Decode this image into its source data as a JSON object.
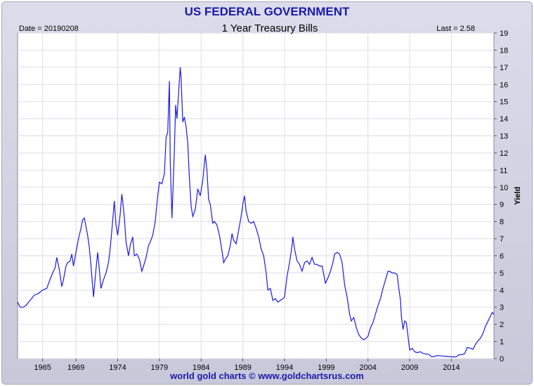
{
  "banner": {
    "title": "US FEDERAL GOVERNMENT"
  },
  "footer": {
    "credit": "world gold charts © www.goldchartsrus.com"
  },
  "colors": {
    "line": "#1a1ae6",
    "banner_text": "#1a1aa8",
    "frame": "#d3d3e3",
    "grid": "#dedee8"
  },
  "chart_data": {
    "type": "line",
    "title": "1 Year Treasury Bills",
    "date_label": "Date = 20190208",
    "last_label": "Last = 2.58",
    "ylabel": "Yield",
    "xlabel": "",
    "xlim": [
      1962,
      2019.1
    ],
    "ylim": [
      0,
      19
    ],
    "x_ticks": [
      1965,
      1969,
      1974,
      1979,
      1984,
      1989,
      1994,
      1999,
      2004,
      2009,
      2014
    ],
    "y_ticks": [
      0,
      1,
      2,
      3,
      4,
      5,
      6,
      7,
      8,
      9,
      10,
      11,
      12,
      13,
      14,
      15,
      16,
      17,
      18,
      19
    ],
    "grid": true,
    "y_axis_side": "right",
    "series": [
      {
        "values": [
          [
            1962.0,
            3.3
          ],
          [
            1962.3,
            3.0
          ],
          [
            1962.7,
            3.0
          ],
          [
            1963.0,
            3.1
          ],
          [
            1963.5,
            3.4
          ],
          [
            1964.0,
            3.7
          ],
          [
            1964.5,
            3.8
          ],
          [
            1965.0,
            4.0
          ],
          [
            1965.5,
            4.1
          ],
          [
            1965.8,
            4.5
          ],
          [
            1966.2,
            5.0
          ],
          [
            1966.5,
            5.3
          ],
          [
            1966.7,
            5.9
          ],
          [
            1967.0,
            5.2
          ],
          [
            1967.3,
            4.2
          ],
          [
            1967.5,
            4.6
          ],
          [
            1967.8,
            5.4
          ],
          [
            1968.0,
            5.6
          ],
          [
            1968.3,
            5.7
          ],
          [
            1968.5,
            6.1
          ],
          [
            1968.7,
            5.4
          ],
          [
            1969.0,
            6.2
          ],
          [
            1969.3,
            7.0
          ],
          [
            1969.6,
            7.6
          ],
          [
            1969.8,
            8.1
          ],
          [
            1970.0,
            8.2
          ],
          [
            1970.2,
            7.7
          ],
          [
            1970.4,
            7.2
          ],
          [
            1970.6,
            6.5
          ],
          [
            1970.8,
            5.4
          ],
          [
            1971.0,
            4.2
          ],
          [
            1971.1,
            3.6
          ],
          [
            1971.4,
            5.2
          ],
          [
            1971.6,
            6.2
          ],
          [
            1971.8,
            5.2
          ],
          [
            1972.0,
            4.1
          ],
          [
            1972.3,
            4.6
          ],
          [
            1972.6,
            5.0
          ],
          [
            1972.9,
            5.6
          ],
          [
            1973.1,
            6.4
          ],
          [
            1973.3,
            7.5
          ],
          [
            1973.5,
            8.6
          ],
          [
            1973.6,
            9.2
          ],
          [
            1973.8,
            7.8
          ],
          [
            1974.0,
            7.2
          ],
          [
            1974.3,
            8.4
          ],
          [
            1974.5,
            9.6
          ],
          [
            1974.6,
            9.2
          ],
          [
            1974.8,
            8.2
          ],
          [
            1975.0,
            6.8
          ],
          [
            1975.3,
            6.0
          ],
          [
            1975.5,
            6.6
          ],
          [
            1975.8,
            7.1
          ],
          [
            1976.0,
            6.0
          ],
          [
            1976.3,
            6.1
          ],
          [
            1976.6,
            5.8
          ],
          [
            1976.9,
            5.1
          ],
          [
            1977.1,
            5.4
          ],
          [
            1977.4,
            5.9
          ],
          [
            1977.7,
            6.6
          ],
          [
            1977.9,
            6.8
          ],
          [
            1978.2,
            7.2
          ],
          [
            1978.5,
            8.0
          ],
          [
            1978.8,
            9.5
          ],
          [
            1979.0,
            10.3
          ],
          [
            1979.3,
            10.2
          ],
          [
            1979.6,
            10.8
          ],
          [
            1979.8,
            12.9
          ],
          [
            1980.0,
            13.2
          ],
          [
            1980.2,
            16.2
          ],
          [
            1980.3,
            11.5
          ],
          [
            1980.5,
            8.2
          ],
          [
            1980.6,
            9.5
          ],
          [
            1980.8,
            12.2
          ],
          [
            1980.95,
            14.8
          ],
          [
            1981.1,
            14.0
          ],
          [
            1981.3,
            15.5
          ],
          [
            1981.5,
            17.0
          ],
          [
            1981.6,
            16.4
          ],
          [
            1981.8,
            13.8
          ],
          [
            1982.0,
            14.1
          ],
          [
            1982.2,
            13.5
          ],
          [
            1982.4,
            12.6
          ],
          [
            1982.6,
            10.5
          ],
          [
            1982.8,
            8.9
          ],
          [
            1983.0,
            8.3
          ],
          [
            1983.3,
            8.7
          ],
          [
            1983.6,
            9.9
          ],
          [
            1983.9,
            9.5
          ],
          [
            1984.2,
            10.4
          ],
          [
            1984.5,
            11.9
          ],
          [
            1984.7,
            11.0
          ],
          [
            1984.9,
            9.3
          ],
          [
            1985.1,
            9.0
          ],
          [
            1985.4,
            7.9
          ],
          [
            1985.6,
            8.0
          ],
          [
            1985.9,
            7.8
          ],
          [
            1986.2,
            7.2
          ],
          [
            1986.5,
            6.3
          ],
          [
            1986.7,
            5.6
          ],
          [
            1986.9,
            5.8
          ],
          [
            1987.2,
            6.0
          ],
          [
            1987.5,
            6.6
          ],
          [
            1987.7,
            7.3
          ],
          [
            1987.9,
            6.9
          ],
          [
            1988.2,
            6.7
          ],
          [
            1988.5,
            7.5
          ],
          [
            1988.8,
            8.3
          ],
          [
            1989.0,
            9.0
          ],
          [
            1989.2,
            9.5
          ],
          [
            1989.4,
            8.6
          ],
          [
            1989.7,
            8.0
          ],
          [
            1990.0,
            7.9
          ],
          [
            1990.3,
            8.0
          ],
          [
            1990.6,
            7.6
          ],
          [
            1990.9,
            7.1
          ],
          [
            1991.2,
            6.4
          ],
          [
            1991.5,
            6.0
          ],
          [
            1991.8,
            5.0
          ],
          [
            1992.0,
            4.0
          ],
          [
            1992.3,
            4.1
          ],
          [
            1992.6,
            3.4
          ],
          [
            1992.9,
            3.5
          ],
          [
            1993.2,
            3.3
          ],
          [
            1993.5,
            3.4
          ],
          [
            1993.8,
            3.5
          ],
          [
            1994.0,
            3.6
          ],
          [
            1994.3,
            4.8
          ],
          [
            1994.6,
            5.6
          ],
          [
            1994.9,
            6.6
          ],
          [
            1995.0,
            7.1
          ],
          [
            1995.2,
            6.4
          ],
          [
            1995.5,
            5.7
          ],
          [
            1995.8,
            5.5
          ],
          [
            1996.1,
            5.1
          ],
          [
            1996.4,
            5.6
          ],
          [
            1996.7,
            5.7
          ],
          [
            1997.0,
            5.5
          ],
          [
            1997.3,
            5.9
          ],
          [
            1997.6,
            5.5
          ],
          [
            1997.9,
            5.5
          ],
          [
            1998.2,
            5.4
          ],
          [
            1998.5,
            5.4
          ],
          [
            1998.7,
            4.9
          ],
          [
            1998.9,
            4.4
          ],
          [
            1999.2,
            4.7
          ],
          [
            1999.5,
            5.1
          ],
          [
            1999.8,
            5.6
          ],
          [
            2000.0,
            6.1
          ],
          [
            2000.3,
            6.2
          ],
          [
            2000.6,
            6.1
          ],
          [
            2000.9,
            5.6
          ],
          [
            2001.2,
            4.3
          ],
          [
            2001.5,
            3.6
          ],
          [
            2001.8,
            2.6
          ],
          [
            2002.0,
            2.2
          ],
          [
            2002.3,
            2.4
          ],
          [
            2002.6,
            1.8
          ],
          [
            2002.9,
            1.4
          ],
          [
            2003.2,
            1.2
          ],
          [
            2003.5,
            1.1
          ],
          [
            2003.8,
            1.2
          ],
          [
            2004.0,
            1.3
          ],
          [
            2004.3,
            1.8
          ],
          [
            2004.6,
            2.1
          ],
          [
            2004.9,
            2.6
          ],
          [
            2005.2,
            3.1
          ],
          [
            2005.5,
            3.5
          ],
          [
            2005.8,
            4.1
          ],
          [
            2006.1,
            4.6
          ],
          [
            2006.4,
            5.1
          ],
          [
            2006.6,
            5.1
          ],
          [
            2006.9,
            5.0
          ],
          [
            2007.2,
            5.0
          ],
          [
            2007.5,
            4.9
          ],
          [
            2007.7,
            4.1
          ],
          [
            2007.9,
            3.4
          ],
          [
            2008.0,
            2.5
          ],
          [
            2008.2,
            1.7
          ],
          [
            2008.4,
            2.2
          ],
          [
            2008.6,
            2.1
          ],
          [
            2008.8,
            1.3
          ],
          [
            2009.0,
            0.5
          ],
          [
            2009.3,
            0.6
          ],
          [
            2009.6,
            0.4
          ],
          [
            2009.9,
            0.35
          ],
          [
            2010.3,
            0.4
          ],
          [
            2010.6,
            0.3
          ],
          [
            2010.9,
            0.28
          ],
          [
            2011.3,
            0.25
          ],
          [
            2011.6,
            0.12
          ],
          [
            2011.9,
            0.12
          ],
          [
            2012.3,
            0.18
          ],
          [
            2012.6,
            0.17
          ],
          [
            2012.9,
            0.15
          ],
          [
            2013.3,
            0.14
          ],
          [
            2013.6,
            0.12
          ],
          [
            2013.9,
            0.12
          ],
          [
            2014.3,
            0.1
          ],
          [
            2014.6,
            0.11
          ],
          [
            2014.9,
            0.22
          ],
          [
            2015.3,
            0.24
          ],
          [
            2015.6,
            0.3
          ],
          [
            2015.9,
            0.65
          ],
          [
            2016.3,
            0.6
          ],
          [
            2016.6,
            0.55
          ],
          [
            2016.9,
            0.85
          ],
          [
            2017.2,
            1.05
          ],
          [
            2017.5,
            1.2
          ],
          [
            2017.8,
            1.5
          ],
          [
            2018.1,
            1.9
          ],
          [
            2018.4,
            2.2
          ],
          [
            2018.7,
            2.5
          ],
          [
            2018.9,
            2.7
          ],
          [
            2019.1,
            2.58
          ]
        ]
      }
    ]
  }
}
